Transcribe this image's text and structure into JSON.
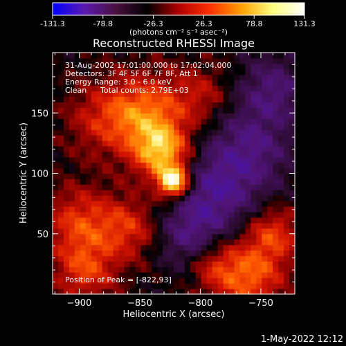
{
  "colorbar": {
    "ticks": [
      "-131.3",
      "-78.8",
      "-26.3",
      "26.3",
      "78.8",
      "131.3"
    ],
    "range": [
      -131.3,
      131.3
    ],
    "unit_label": "(photons cm⁻² s⁻¹ asec⁻²)",
    "colors": [
      "#0000ff",
      "#5a1ab0",
      "#4a1040",
      "#000000",
      "#b00000",
      "#ff3000",
      "#ffa000",
      "#ffff80",
      "#ffffff"
    ]
  },
  "header": {
    "line1": "31-Aug-2002 17:01:00.000 to 17:02:04.000",
    "line2": "Detectors: 3F 4F 5F 6F 7F 8F, Att 1",
    "line3": "Energy Range: 3.0 - 6.0 keV",
    "line4a": "Clean",
    "line4b": "Total counts: 2.79E+03"
  },
  "peak_label": "Position of Peak = [-822,93]",
  "timestamp": "1-May-2022 12:12",
  "chart_data": {
    "type": "heatmap",
    "title": "Reconstructed RHESSI Image",
    "xlabel": "Heliocentric X (arcsec)",
    "ylabel": "Heliocentric Y (arcsec)",
    "xlim": [
      -922,
      -722
    ],
    "ylim": [
      0,
      200
    ],
    "xticks": [
      -900,
      -850,
      -800,
      -750
    ],
    "yticks": [
      50,
      100,
      150
    ],
    "xtick_labels": [
      "−900",
      "−850",
      "−800",
      "−750"
    ],
    "ytick_labels": [
      "50",
      "100",
      "150"
    ],
    "peak": {
      "x": -822,
      "y": 93,
      "value": 131.3
    },
    "sources": [
      {
        "x": -822,
        "y": 93,
        "amp": 131,
        "sigma": 9
      },
      {
        "x": -832,
        "y": 118,
        "amp": 95,
        "sigma": 16
      },
      {
        "x": -845,
        "y": 150,
        "amp": 70,
        "sigma": 22
      },
      {
        "x": -880,
        "y": 145,
        "amp": 40,
        "sigma": 22
      },
      {
        "x": -800,
        "y": 165,
        "amp": 35,
        "sigma": 18
      },
      {
        "x": -900,
        "y": 60,
        "amp": 55,
        "sigma": 20
      },
      {
        "x": -860,
        "y": 55,
        "amp": 50,
        "sigma": 18
      },
      {
        "x": -895,
        "y": 20,
        "amp": 55,
        "sigma": 18
      },
      {
        "x": -760,
        "y": 15,
        "amp": 70,
        "sigma": 20
      },
      {
        "x": -740,
        "y": 50,
        "amp": 55,
        "sigma": 16
      },
      {
        "x": -790,
        "y": 25,
        "amp": 40,
        "sigma": 15
      },
      {
        "x": -790,
        "y": 80,
        "amp": -55,
        "sigma": 25
      },
      {
        "x": -760,
        "y": 120,
        "amp": -50,
        "sigma": 25
      },
      {
        "x": -740,
        "y": 170,
        "amp": -45,
        "sigma": 20
      },
      {
        "x": -810,
        "y": 45,
        "amp": -40,
        "sigma": 18
      }
    ]
  }
}
